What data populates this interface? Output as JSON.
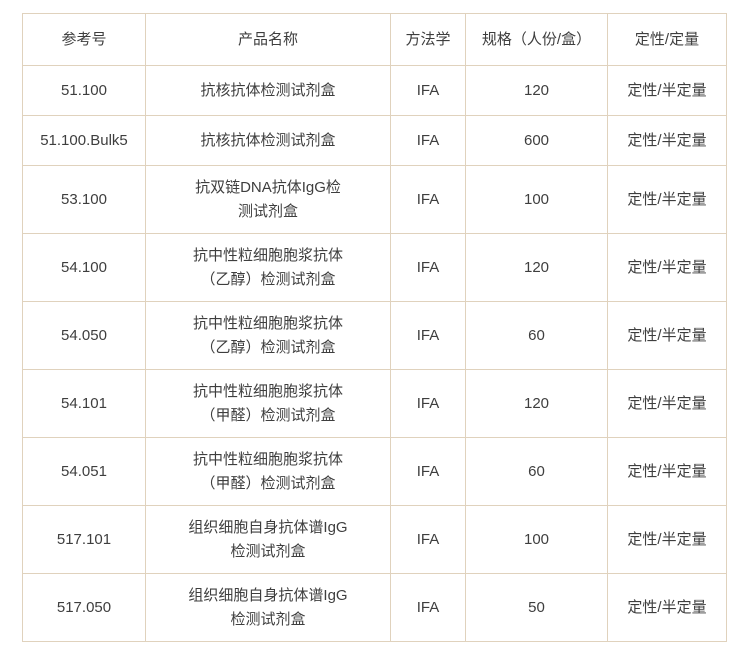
{
  "table": {
    "headers": {
      "ref": "参考号",
      "name": "产品名称",
      "method": "方法学",
      "spec": "规格（人份/盒）",
      "type": "定性/定量"
    },
    "rows": [
      {
        "ref": "51.100",
        "name": "抗核抗体检测试剂盒",
        "method": "IFA",
        "spec": "120",
        "type": "定性/半定量"
      },
      {
        "ref": "51.100.Bulk5",
        "name": "抗核抗体检测试剂盒",
        "method": "IFA",
        "spec": "600",
        "type": "定性/半定量"
      },
      {
        "ref": "53.100",
        "name": "抗双链DNA抗体IgG检\n测试剂盒",
        "method": "IFA",
        "spec": "100",
        "type": "定性/半定量"
      },
      {
        "ref": "54.100",
        "name": "抗中性粒细胞胞浆抗体\n（乙醇）检测试剂盒",
        "method": "IFA",
        "spec": "120",
        "type": "定性/半定量"
      },
      {
        "ref": "54.050",
        "name": "抗中性粒细胞胞浆抗体\n（乙醇）检测试剂盒",
        "method": "IFA",
        "spec": "60",
        "type": "定性/半定量"
      },
      {
        "ref": "54.101",
        "name": "抗中性粒细胞胞浆抗体\n（甲醛）检测试剂盒",
        "method": "IFA",
        "spec": "120",
        "type": "定性/半定量"
      },
      {
        "ref": "54.051",
        "name": "抗中性粒细胞胞浆抗体\n（甲醛）检测试剂盒",
        "method": "IFA",
        "spec": "60",
        "type": "定性/半定量"
      },
      {
        "ref": "517.101",
        "name": "组织细胞自身抗体谱IgG\n检测试剂盒",
        "method": "IFA",
        "spec": "100",
        "type": "定性/半定量"
      },
      {
        "ref": "517.050",
        "name": "组织细胞自身抗体谱IgG\n检测试剂盒",
        "method": "IFA",
        "spec": "50",
        "type": "定性/半定量"
      }
    ],
    "colors": {
      "border": "#e0d2bd",
      "text": "#3e3e3e",
      "background": "#ffffff"
    }
  }
}
